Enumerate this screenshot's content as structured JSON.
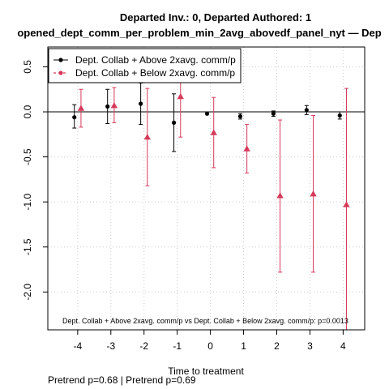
{
  "chart_data": {
    "type": "scatter",
    "title": "Departed Inv.: 0, Departed Authored: 1",
    "subtitle": "opened_dept_comm_per_problem_min_2avg_abovedf_panel_nyt — Dep",
    "xlabel": "Time to treatment",
    "ylabel": "",
    "xlim": [
      -4.9,
      4.65
    ],
    "ylim": [
      -2.42,
      0.72
    ],
    "xticks": [
      -4,
      -3,
      -2,
      -1,
      0,
      1,
      2,
      3,
      4
    ],
    "yticks": [
      -2.0,
      -1.5,
      -1.0,
      -0.5,
      0.0,
      0.5
    ],
    "ytick_labels": [
      "-2.0",
      "-1.5",
      "-1.0",
      "-0.5",
      "0.0",
      "0.5"
    ],
    "grid": true,
    "reference_line_y": 0,
    "legend_position": "top-left",
    "series": [
      {
        "name": "Dept. Collab + Above 2xavg. comm/p",
        "color": "#000000",
        "marker": "circle",
        "x": [
          -4,
          -3,
          -2,
          -1,
          0,
          1,
          2,
          3,
          4
        ],
        "y": [
          -0.06,
          0.06,
          0.09,
          -0.12,
          -0.02,
          -0.05,
          -0.02,
          0.02,
          -0.04
        ],
        "lo": [
          -0.18,
          -0.13,
          -0.14,
          -0.44,
          -0.02,
          -0.08,
          -0.05,
          -0.03,
          -0.08
        ],
        "hi": [
          0.08,
          0.25,
          0.32,
          0.2,
          -0.02,
          -0.02,
          0.01,
          0.07,
          0.0
        ]
      },
      {
        "name": "Dept. Collab + Below 2xavg. comm/p",
        "color": "#d63a5a",
        "marker": "triangle",
        "x": [
          -4,
          -3,
          -2,
          -1,
          0,
          1,
          2,
          3,
          4
        ],
        "y": [
          0.04,
          0.07,
          -0.28,
          0.17,
          -0.23,
          -0.41,
          -0.93,
          -0.91,
          -1.03
        ],
        "lo": [
          -0.17,
          -0.12,
          -0.82,
          -0.28,
          -0.62,
          -0.68,
          -1.78,
          -1.78,
          -2.42
        ],
        "hi": [
          0.25,
          0.27,
          0.26,
          0.62,
          0.16,
          -0.14,
          -0.09,
          -0.04,
          0.26
        ]
      }
    ],
    "annotation": "Dept. Collab + Above 2xavg. comm/p vs Dept. Collab + Below 2xavg. comm/p: p=0.0013"
  },
  "footer_note": "Pretrend p=0.68 | Pretrend p=0.69"
}
